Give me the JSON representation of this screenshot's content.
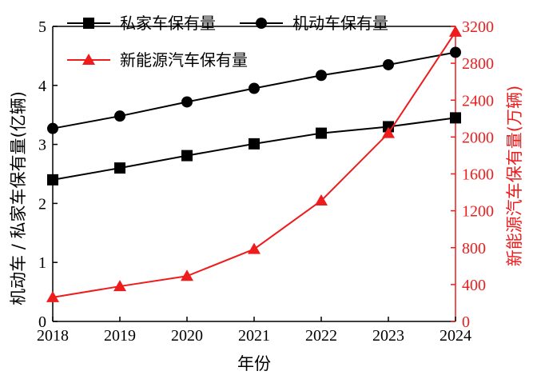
{
  "chart_data": {
    "type": "line",
    "x": [
      2018,
      2019,
      2020,
      2021,
      2022,
      2023,
      2024
    ],
    "x_tick_labels": [
      "2018",
      "2019",
      "2020",
      "2021",
      "2022",
      "2023",
      "2024"
    ],
    "xlabel": "年份",
    "xlim": [
      2018,
      2024
    ],
    "y_left": {
      "label": "机动车 / 私家车保有量(亿辆)",
      "lim": [
        0,
        5
      ],
      "ticks": [
        0,
        1,
        2,
        3,
        4,
        5
      ],
      "tick_labels": [
        "0",
        "1",
        "2",
        "3",
        "4",
        "5"
      ],
      "color": "#000000"
    },
    "y_right": {
      "label": "新能源汽车保有量(万辆)",
      "lim": [
        0,
        3200
      ],
      "ticks": [
        0,
        400,
        800,
        1200,
        1600,
        2000,
        2400,
        2800,
        3200
      ],
      "tick_labels": [
        "0",
        "400",
        "800",
        "1200",
        "1600",
        "2000",
        "2400",
        "2800",
        "3200"
      ],
      "color": "#ee1c1c"
    },
    "series": [
      {
        "name": "私家车保有量",
        "axis": "left",
        "marker": "square",
        "color": "#000000",
        "values": [
          2.4,
          2.6,
          2.81,
          3.01,
          3.19,
          3.3,
          3.45
        ]
      },
      {
        "name": "机动车保有量",
        "axis": "left",
        "marker": "circle",
        "color": "#000000",
        "values": [
          3.27,
          3.48,
          3.72,
          3.95,
          4.17,
          4.35,
          4.56
        ]
      },
      {
        "name": "新能源汽车保有量",
        "axis": "right",
        "marker": "triangle",
        "color": "#ee1c1c",
        "values": [
          261,
          381,
          492,
          784,
          1310,
          2041,
          3140
        ]
      }
    ],
    "legend_placement": "top-left",
    "grid": false
  }
}
